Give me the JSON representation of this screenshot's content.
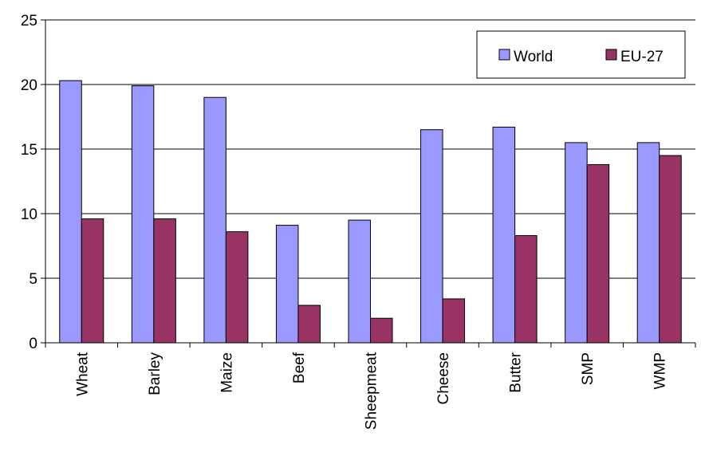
{
  "chart_data": {
    "type": "bar",
    "categories": [
      "Wheat",
      "Barley",
      "Maize",
      "Beef",
      "Sheepmeat",
      "Cheese",
      "Butter",
      "SMP",
      "WMP"
    ],
    "series": [
      {
        "name": "World",
        "color": "#9999FF",
        "values": [
          20.3,
          19.9,
          19.0,
          9.1,
          9.5,
          16.5,
          16.7,
          15.5,
          15.5
        ]
      },
      {
        "name": "EU-27",
        "color": "#993366",
        "values": [
          9.6,
          9.6,
          8.6,
          2.9,
          1.9,
          3.4,
          8.3,
          13.8,
          14.5
        ]
      }
    ],
    "ylim": [
      0,
      25
    ],
    "yticks": [
      0,
      5,
      10,
      15,
      20,
      25
    ],
    "grid": true,
    "legend_position": "top-right"
  }
}
